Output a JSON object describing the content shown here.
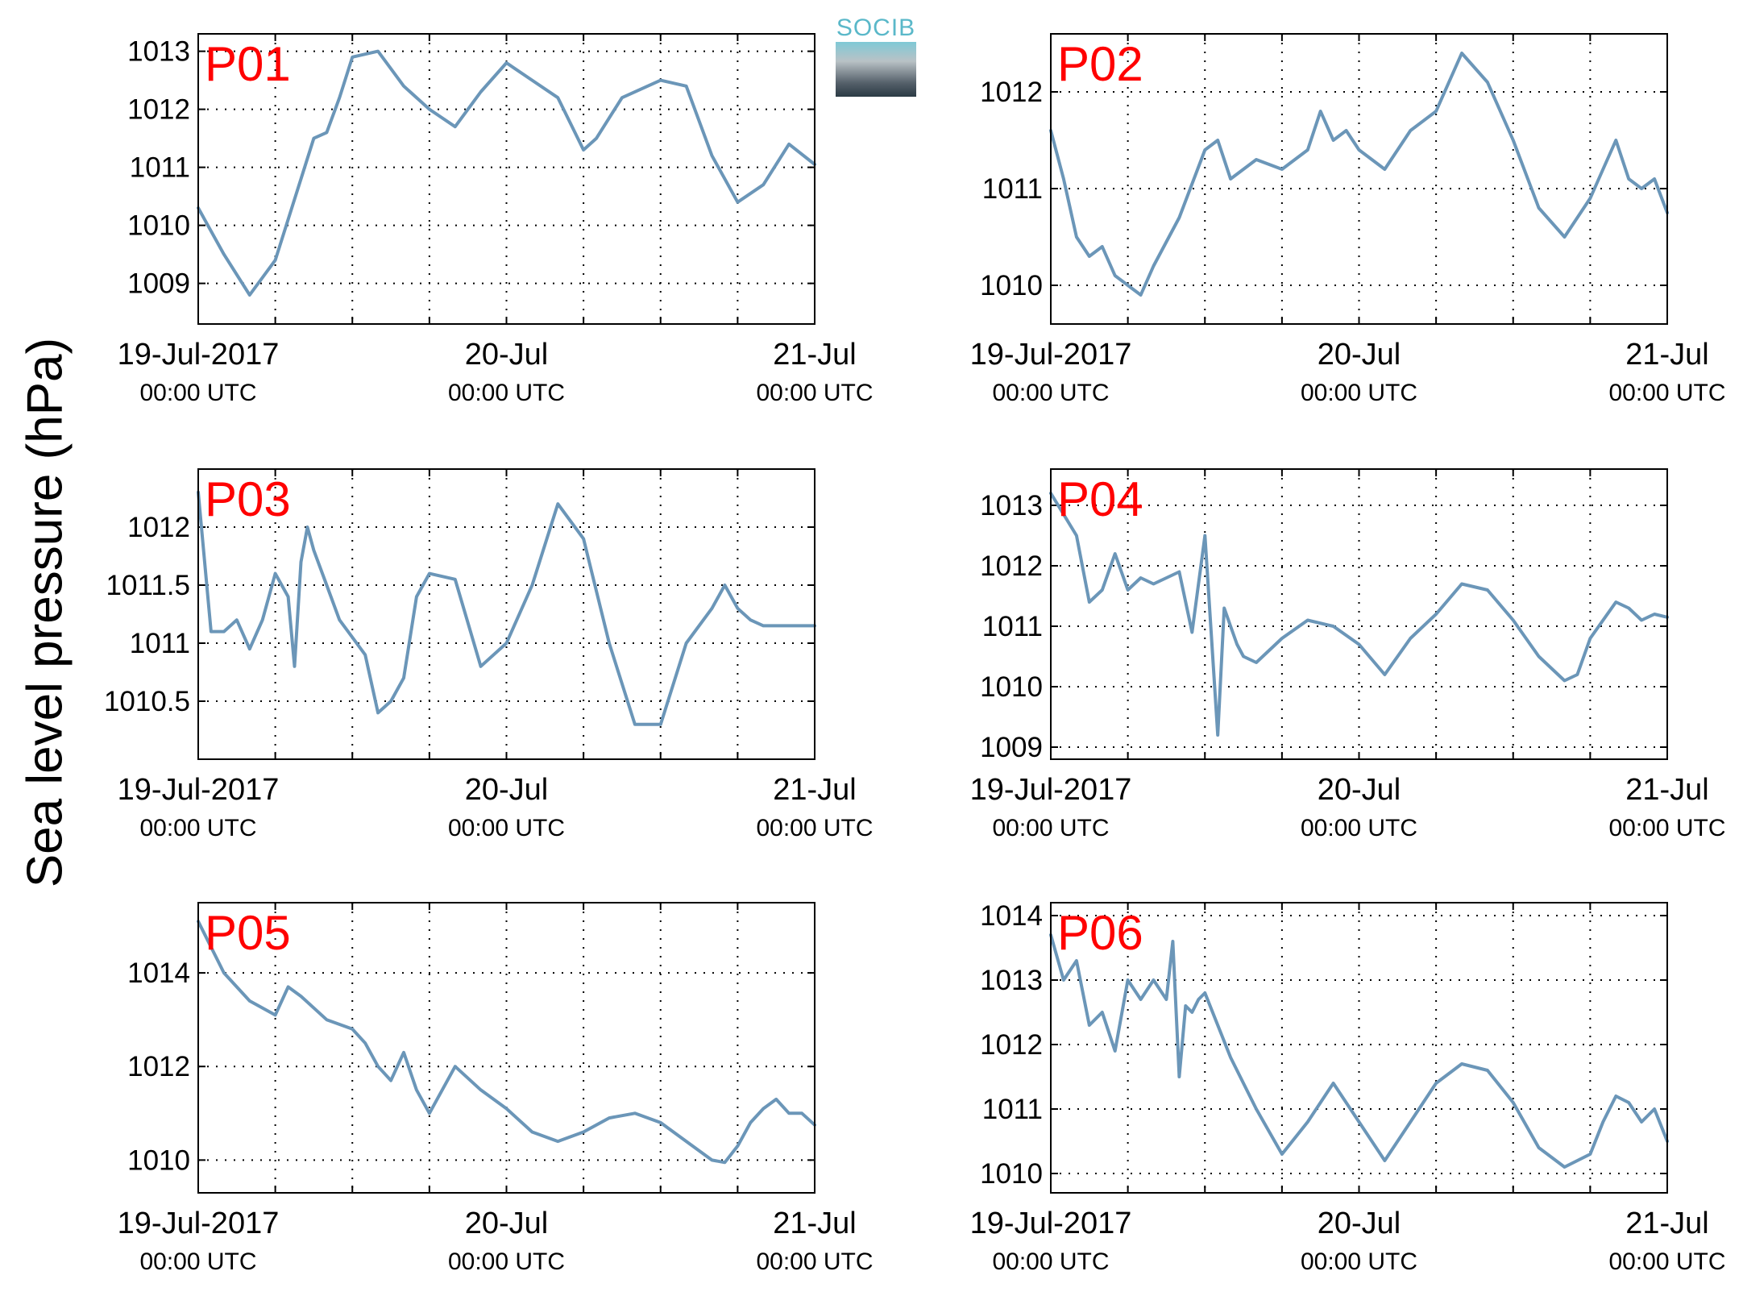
{
  "figure": {
    "ylabel": "Sea level pressure (hPa)",
    "logo_text": "SOCIB",
    "series_color": "#6b96b8",
    "panel_label_color": "#ff0000"
  },
  "chart_data": [
    {
      "type": "line",
      "label": "P01",
      "xlim": [
        "2017-07-19T00:00Z",
        "2017-07-21T00:00Z"
      ],
      "ylim": [
        1008.3,
        1013.3
      ],
      "yticks": [
        1009,
        1010,
        1011,
        1012,
        1013
      ],
      "ytick_labels": [
        "1009",
        "1010",
        "1011",
        "1012",
        "1013"
      ],
      "xtick_labels": [
        [
          "19-Jul-2017",
          "00:00 UTC"
        ],
        [
          "20-Jul",
          "00:00 UTC"
        ],
        [
          "21-Jul",
          "00:00 UTC"
        ]
      ],
      "grid": true,
      "x_hours": [
        0,
        2,
        4,
        6,
        8,
        9,
        10,
        11,
        12,
        14,
        16,
        18,
        20,
        22,
        24,
        26,
        28,
        30,
        31,
        33,
        36,
        38,
        40,
        42,
        44,
        46,
        48
      ],
      "y": [
        1010.3,
        1009.5,
        1008.8,
        1009.4,
        1010.8,
        1011.5,
        1011.6,
        1012.2,
        1012.9,
        1013.0,
        1012.4,
        1012.0,
        1011.7,
        1012.3,
        1012.8,
        1012.5,
        1012.2,
        1011.3,
        1011.5,
        1012.2,
        1012.5,
        1012.4,
        1011.2,
        1010.4,
        1010.7,
        1011.4,
        1011.05
      ]
    },
    {
      "type": "line",
      "label": "P02",
      "xlim": [
        "2017-07-19T00:00Z",
        "2017-07-21T00:00Z"
      ],
      "ylim": [
        1009.6,
        1012.6
      ],
      "yticks": [
        1010,
        1011,
        1012
      ],
      "ytick_labels": [
        "1010",
        "1011",
        "1012"
      ],
      "xtick_labels": [
        [
          "19-Jul-2017",
          "00:00 UTC"
        ],
        [
          "20-Jul",
          "00:00 UTC"
        ],
        [
          "21-Jul",
          "00:00 UTC"
        ]
      ],
      "grid": true,
      "x_hours": [
        0,
        1,
        2,
        3,
        4,
        5,
        6,
        7,
        8,
        10,
        12,
        13,
        14,
        16,
        18,
        20,
        21,
        22,
        23,
        24,
        26,
        28,
        30,
        32,
        34,
        36,
        38,
        40,
        42,
        43,
        44,
        45,
        46,
        47,
        48
      ],
      "y": [
        1011.6,
        1011.1,
        1010.5,
        1010.3,
        1010.4,
        1010.1,
        1010.0,
        1009.9,
        1010.2,
        1010.7,
        1011.4,
        1011.5,
        1011.1,
        1011.3,
        1011.2,
        1011.4,
        1011.8,
        1011.5,
        1011.6,
        1011.4,
        1011.2,
        1011.6,
        1011.8,
        1012.4,
        1012.1,
        1011.5,
        1010.8,
        1010.5,
        1010.9,
        1011.2,
        1011.5,
        1011.1,
        1011.0,
        1011.1,
        1010.75
      ]
    },
    {
      "type": "line",
      "label": "P03",
      "xlim": [
        "2017-07-19T00:00Z",
        "2017-07-21T00:00Z"
      ],
      "ylim": [
        1010.0,
        1012.5
      ],
      "yticks": [
        1010.5,
        1011,
        1011.5,
        1012
      ],
      "ytick_labels": [
        "1010.5",
        "1011",
        "1011.5",
        "1012"
      ],
      "xtick_labels": [
        [
          "19-Jul-2017",
          "00:00 UTC"
        ],
        [
          "20-Jul",
          "00:00 UTC"
        ],
        [
          "21-Jul",
          "00:00 UTC"
        ]
      ],
      "grid": true,
      "x_hours": [
        0,
        1,
        2,
        3,
        4,
        5,
        6,
        7,
        7.5,
        8,
        8.5,
        9,
        10,
        11,
        12,
        13,
        14,
        15,
        16,
        17,
        18,
        20,
        22,
        24,
        26,
        28,
        30,
        32,
        34,
        36,
        38,
        40,
        41,
        42,
        43,
        44,
        45,
        46,
        47,
        48
      ],
      "y": [
        1012.3,
        1011.1,
        1011.1,
        1011.2,
        1010.95,
        1011.2,
        1011.6,
        1011.4,
        1010.8,
        1011.7,
        1012.0,
        1011.8,
        1011.5,
        1011.2,
        1011.05,
        1010.9,
        1010.4,
        1010.5,
        1010.7,
        1011.4,
        1011.6,
        1011.55,
        1010.8,
        1011.0,
        1011.5,
        1012.2,
        1011.9,
        1011.0,
        1010.3,
        1010.3,
        1011.0,
        1011.3,
        1011.5,
        1011.3,
        1011.2,
        1011.15,
        1011.15,
        1011.15,
        1011.15,
        1011.15
      ]
    },
    {
      "type": "line",
      "label": "P04",
      "xlim": [
        "2017-07-19T00:00Z",
        "2017-07-21T00:00Z"
      ],
      "ylim": [
        1008.8,
        1013.6
      ],
      "yticks": [
        1009,
        1010,
        1011,
        1012,
        1013
      ],
      "ytick_labels": [
        "1009",
        "1010",
        "1011",
        "1012",
        "1013"
      ],
      "xtick_labels": [
        [
          "19-Jul-2017",
          "00:00 UTC"
        ],
        [
          "20-Jul",
          "00:00 UTC"
        ],
        [
          "21-Jul",
          "00:00 UTC"
        ]
      ],
      "grid": true,
      "x_hours": [
        0,
        2,
        3,
        4,
        5,
        6,
        7,
        8,
        10,
        11,
        12,
        13,
        13.5,
        14,
        14.5,
        15,
        16,
        18,
        20,
        22,
        24,
        26,
        28,
        30,
        32,
        34,
        36,
        38,
        40,
        41,
        42,
        44,
        45,
        46,
        47,
        48
      ],
      "y": [
        1013.2,
        1012.5,
        1011.4,
        1011.6,
        1012.2,
        1011.6,
        1011.8,
        1011.7,
        1011.9,
        1010.9,
        1012.5,
        1009.2,
        1011.3,
        1011.0,
        1010.7,
        1010.5,
        1010.4,
        1010.8,
        1011.1,
        1011.0,
        1010.7,
        1010.2,
        1010.8,
        1011.2,
        1011.7,
        1011.6,
        1011.1,
        1010.5,
        1010.1,
        1010.2,
        1010.8,
        1011.4,
        1011.3,
        1011.1,
        1011.2,
        1011.15
      ]
    },
    {
      "type": "line",
      "label": "P05",
      "xlim": [
        "2017-07-19T00:00Z",
        "2017-07-21T00:00Z"
      ],
      "ylim": [
        1009.3,
        1015.5
      ],
      "yticks": [
        1010,
        1012,
        1014
      ],
      "ytick_labels": [
        "1010",
        "1012",
        "1014"
      ],
      "xtick_labels": [
        [
          "19-Jul-2017",
          "00:00 UTC"
        ],
        [
          "20-Jul",
          "00:00 UTC"
        ],
        [
          "21-Jul",
          "00:00 UTC"
        ]
      ],
      "grid": true,
      "x_hours": [
        0,
        2,
        4,
        6,
        7,
        8,
        10,
        12,
        13,
        14,
        15,
        16,
        17,
        18,
        20,
        22,
        24,
        26,
        28,
        30,
        32,
        34,
        36,
        38,
        40,
        41,
        42,
        43,
        44,
        45,
        46,
        47,
        48
      ],
      "y": [
        1015.1,
        1014.0,
        1013.4,
        1013.1,
        1013.7,
        1013.5,
        1013.0,
        1012.8,
        1012.5,
        1012.0,
        1011.7,
        1012.3,
        1011.5,
        1011.0,
        1012.0,
        1011.5,
        1011.1,
        1010.6,
        1010.4,
        1010.6,
        1010.9,
        1011.0,
        1010.8,
        1010.4,
        1010.0,
        1009.95,
        1010.3,
        1010.8,
        1011.1,
        1011.3,
        1011.0,
        1011.0,
        1010.75
      ]
    },
    {
      "type": "line",
      "label": "P06",
      "xlim": [
        "2017-07-19T00:00Z",
        "2017-07-21T00:00Z"
      ],
      "ylim": [
        1009.7,
        1014.2
      ],
      "yticks": [
        1010,
        1011,
        1012,
        1013,
        1014
      ],
      "ytick_labels": [
        "1010",
        "1011",
        "1012",
        "1013",
        "1014"
      ],
      "xtick_labels": [
        [
          "19-Jul-2017",
          "00:00 UTC"
        ],
        [
          "20-Jul",
          "00:00 UTC"
        ],
        [
          "21-Jul",
          "00:00 UTC"
        ]
      ],
      "grid": true,
      "x_hours": [
        0,
        1,
        2,
        3,
        4,
        5,
        6,
        7,
        8,
        9,
        9.5,
        10,
        10.5,
        11,
        11.5,
        12,
        14,
        16,
        18,
        20,
        22,
        24,
        26,
        28,
        30,
        32,
        34,
        36,
        38,
        40,
        42,
        43,
        44,
        45,
        46,
        47,
        48
      ],
      "y": [
        1013.7,
        1013.0,
        1013.3,
        1012.3,
        1012.5,
        1011.9,
        1013.0,
        1012.7,
        1013.0,
        1012.7,
        1013.6,
        1011.5,
        1012.6,
        1012.5,
        1012.7,
        1012.8,
        1011.8,
        1011.0,
        1010.3,
        1010.8,
        1011.4,
        1010.8,
        1010.2,
        1010.8,
        1011.4,
        1011.7,
        1011.6,
        1011.1,
        1010.4,
        1010.1,
        1010.3,
        1010.8,
        1011.2,
        1011.1,
        1010.8,
        1011.0,
        1010.5
      ]
    }
  ]
}
